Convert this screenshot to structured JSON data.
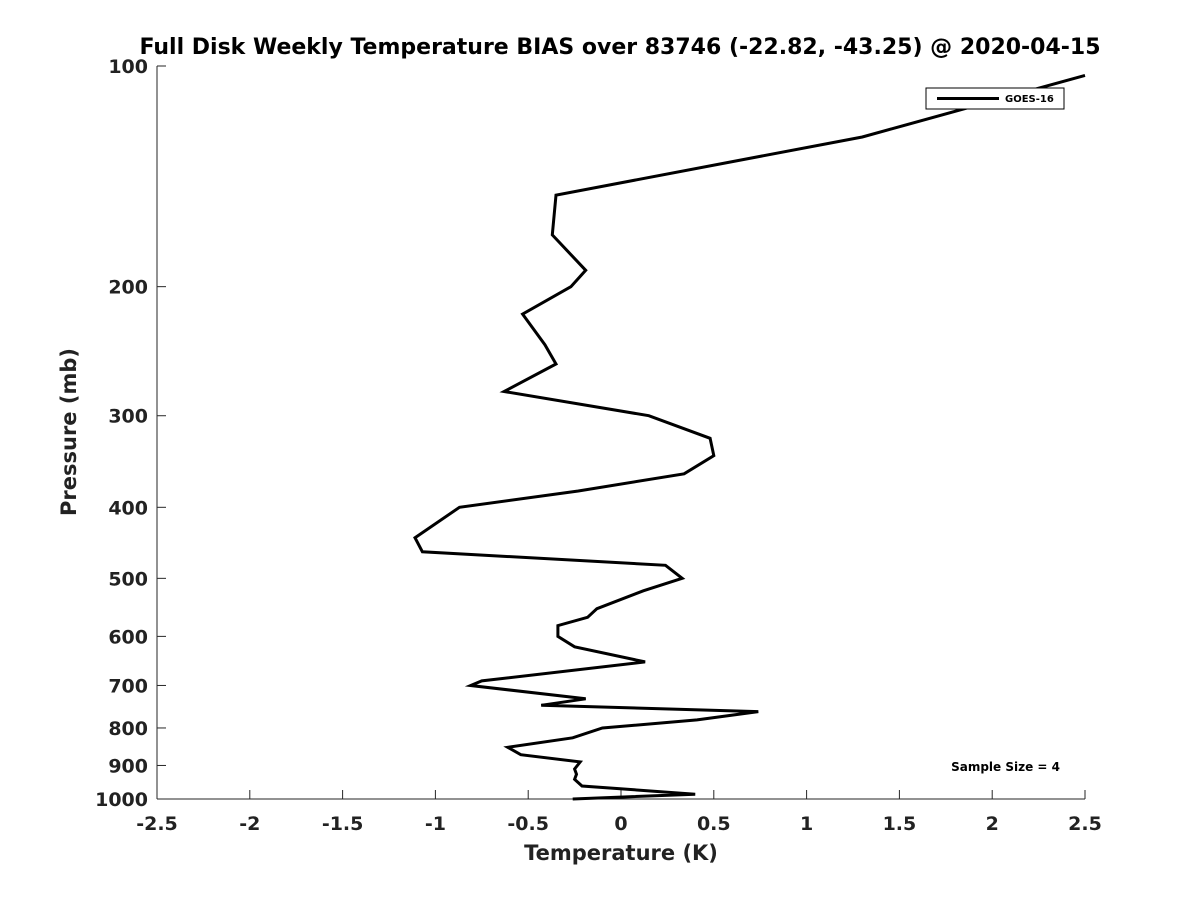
{
  "chart_data": {
    "type": "line",
    "title": "Full Disk Weekly Temperature BIAS over 83746 (-22.82, -43.25) @ 2020-04-15",
    "xlabel": "Temperature (K)",
    "ylabel": "Pressure (mb)",
    "xlim": [
      -2.5,
      2.5
    ],
    "ylim": [
      1000,
      100
    ],
    "yscale": "log",
    "y_reversed": true,
    "grid": false,
    "legend_position": "top-right",
    "x_ticks": [
      "-2.5",
      "-2",
      "-1.5",
      "-1",
      "-0.5",
      "0",
      "0.5",
      "1",
      "1.5",
      "2",
      "2.5"
    ],
    "y_ticks": [
      "100",
      "200",
      "300",
      "400",
      "500",
      "600",
      "700",
      "800",
      "900",
      "1000"
    ],
    "annotation": "Sample Size = 4",
    "series": [
      {
        "name": "GOES-16",
        "color": "#000000",
        "points": [
          {
            "x": 2.5,
            "y": 103
          },
          {
            "x": 1.3,
            "y": 125
          },
          {
            "x": -0.35,
            "y": 150
          },
          {
            "x": -0.37,
            "y": 170
          },
          {
            "x": -0.19,
            "y": 190
          },
          {
            "x": -0.27,
            "y": 200
          },
          {
            "x": -0.53,
            "y": 218
          },
          {
            "x": -0.41,
            "y": 240
          },
          {
            "x": -0.35,
            "y": 255
          },
          {
            "x": -0.63,
            "y": 278
          },
          {
            "x": 0.15,
            "y": 300
          },
          {
            "x": 0.48,
            "y": 322
          },
          {
            "x": 0.5,
            "y": 340
          },
          {
            "x": 0.34,
            "y": 360
          },
          {
            "x": -0.23,
            "y": 380
          },
          {
            "x": -0.87,
            "y": 400
          },
          {
            "x": -1.11,
            "y": 440
          },
          {
            "x": -1.07,
            "y": 460
          },
          {
            "x": 0.24,
            "y": 480
          },
          {
            "x": 0.33,
            "y": 500
          },
          {
            "x": 0.12,
            "y": 520
          },
          {
            "x": -0.13,
            "y": 550
          },
          {
            "x": -0.18,
            "y": 565
          },
          {
            "x": -0.34,
            "y": 580
          },
          {
            "x": -0.34,
            "y": 600
          },
          {
            "x": -0.25,
            "y": 620
          },
          {
            "x": 0.13,
            "y": 650
          },
          {
            "x": -0.75,
            "y": 690
          },
          {
            "x": -0.81,
            "y": 700
          },
          {
            "x": -0.19,
            "y": 730
          },
          {
            "x": -0.43,
            "y": 745
          },
          {
            "x": 0.74,
            "y": 760
          },
          {
            "x": 0.41,
            "y": 780
          },
          {
            "x": -0.1,
            "y": 800
          },
          {
            "x": -0.26,
            "y": 825
          },
          {
            "x": -0.61,
            "y": 850
          },
          {
            "x": -0.54,
            "y": 870
          },
          {
            "x": -0.22,
            "y": 890
          },
          {
            "x": -0.25,
            "y": 910
          },
          {
            "x": -0.24,
            "y": 925
          },
          {
            "x": -0.25,
            "y": 940
          },
          {
            "x": -0.21,
            "y": 960
          },
          {
            "x": 0.4,
            "y": 985
          },
          {
            "x": -0.26,
            "y": 1000
          }
        ]
      }
    ]
  }
}
